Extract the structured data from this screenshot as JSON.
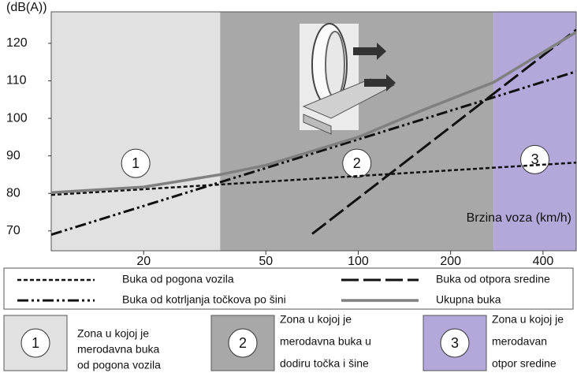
{
  "chart_data": {
    "type": "line",
    "y_label": "(dB(A))",
    "x_label": "Brzina voza (km/h)",
    "log_x": true,
    "xlim": [
      10,
      513
    ],
    "ylim": [
      64.7,
      128.4
    ],
    "xticks": [
      20,
      50,
      100,
      200,
      400
    ],
    "yticks": [
      70,
      80,
      90,
      100,
      110,
      120
    ],
    "zones": [
      {
        "label": "1",
        "from": 10,
        "to": 35.5,
        "color": "#e1e1e1",
        "at": 88,
        "text": [
          "Zona u kojoj je",
          "merodavna buka",
          "od pogona vozila"
        ]
      },
      {
        "label": "2",
        "from": 35.5,
        "to": 276,
        "color": "#a8a8a8",
        "at": 88,
        "text": [
          "Zona u kojoj je",
          "merodavna buka u",
          "dodiru točka i šine"
        ]
      },
      {
        "label": "3",
        "from": 276,
        "to": 513,
        "color": "#b4a8da",
        "at": 89,
        "text": [
          "Zona u kojoj je",
          "merodavan",
          "otpor sredine"
        ]
      }
    ],
    "series": [
      {
        "name": "Buka od pogona vozila",
        "color": "#111111",
        "dash": "5,3",
        "width": 2.5,
        "x": [
          10,
          513
        ],
        "values": [
          79.6,
          88.2
        ]
      },
      {
        "name": "Buka od otpora sredine",
        "color": "#111111",
        "dash": "22,6",
        "width": 3,
        "x": [
          70.8,
          513
        ],
        "values": [
          69.2,
          123.6
        ]
      },
      {
        "name": "Buka od kotrljanja točkova po šini",
        "color": "#111111",
        "dash": "14,4,3,4,3,4",
        "width": 3,
        "x": [
          10,
          276,
          513
        ],
        "values": [
          69,
          105.6,
          112.5
        ]
      },
      {
        "name": "Ukupna buka",
        "color": "#808080",
        "dash": "none",
        "width": 3.5,
        "x": [
          10,
          20,
          35.5,
          50,
          100,
          160,
          276,
          513
        ],
        "values": [
          80.2,
          81.7,
          85,
          87.5,
          95,
          102,
          109.6,
          123
        ]
      }
    ]
  }
}
